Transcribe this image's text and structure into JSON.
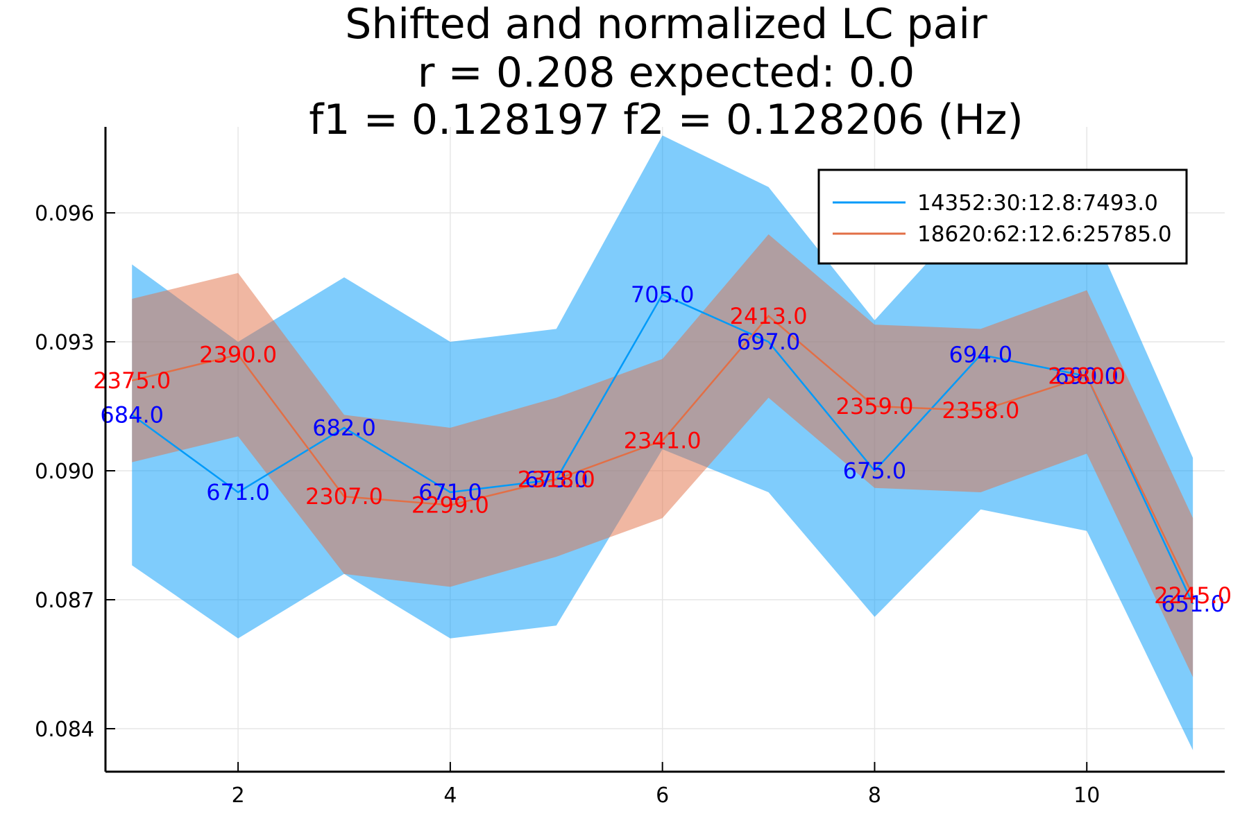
{
  "chart_data": {
    "type": "line",
    "title_lines": [
      "Shifted and normalized LC pair",
      "r = 0.208 expected: 0.0",
      "f1 = 0.128197    f2 = 0.128206 (Hz)"
    ],
    "xlabel": "",
    "ylabel": "",
    "xlim": [
      0.75,
      11.3
    ],
    "ylim": [
      0.083,
      0.098
    ],
    "x_ticks": [
      2,
      4,
      6,
      8,
      10
    ],
    "x_tick_labels": [
      "2",
      "4",
      "6",
      "8",
      "10"
    ],
    "y_ticks": [
      0.084,
      0.087,
      0.09,
      0.093,
      0.096
    ],
    "y_tick_labels": [
      "0.084",
      "0.087",
      "0.090",
      "0.093",
      "0.096"
    ],
    "grid": true,
    "legend_position": "top-right",
    "x": [
      1,
      2,
      3,
      4,
      5,
      6,
      7,
      8,
      9,
      10,
      11
    ],
    "series": [
      {
        "name": "14352:30:12.8:7493.0",
        "color": "#009af9",
        "band_color": "#009af9",
        "label_color": "#0000ff",
        "values": [
          0.0913,
          0.0895,
          0.091,
          0.0895,
          0.0898,
          0.0941,
          0.093,
          0.09,
          0.0927,
          0.0922,
          0.0869
        ],
        "band_upper": [
          0.0948,
          0.093,
          0.0945,
          0.093,
          0.0933,
          0.0978,
          0.0966,
          0.0935,
          0.0962,
          0.0959,
          0.0903
        ],
        "band_lower": [
          0.0878,
          0.0861,
          0.0876,
          0.0861,
          0.0864,
          0.0905,
          0.0895,
          0.0866,
          0.0891,
          0.0886,
          0.0835
        ],
        "point_labels": [
          "684.0",
          "671.0",
          "682.0",
          "671.0",
          "673.0",
          "705.0",
          "697.0",
          "675.0",
          "694.0",
          "690.0",
          "651.0"
        ]
      },
      {
        "name": "18620:62:12.6:25785.0",
        "color": "#e26f46",
        "band_color": "#e26f46",
        "label_color": "#ff0000",
        "values": [
          0.0921,
          0.0927,
          0.0894,
          0.0892,
          0.0898,
          0.0907,
          0.0936,
          0.0915,
          0.0914,
          0.0922,
          0.0871
        ],
        "band_upper": [
          0.094,
          0.0946,
          0.0913,
          0.091,
          0.0917,
          0.0926,
          0.0955,
          0.0934,
          0.0933,
          0.0942,
          0.0889
        ],
        "band_lower": [
          0.0902,
          0.0908,
          0.0876,
          0.0873,
          0.088,
          0.0889,
          0.0917,
          0.0896,
          0.0895,
          0.0904,
          0.0852
        ],
        "point_labels": [
          "2375.0",
          "2390.0",
          "2307.0",
          "2299.0",
          "2318.0",
          "2341.0",
          "2413.0",
          "2359.0",
          "2358.0",
          "2380.0",
          "2245.0"
        ]
      }
    ]
  }
}
